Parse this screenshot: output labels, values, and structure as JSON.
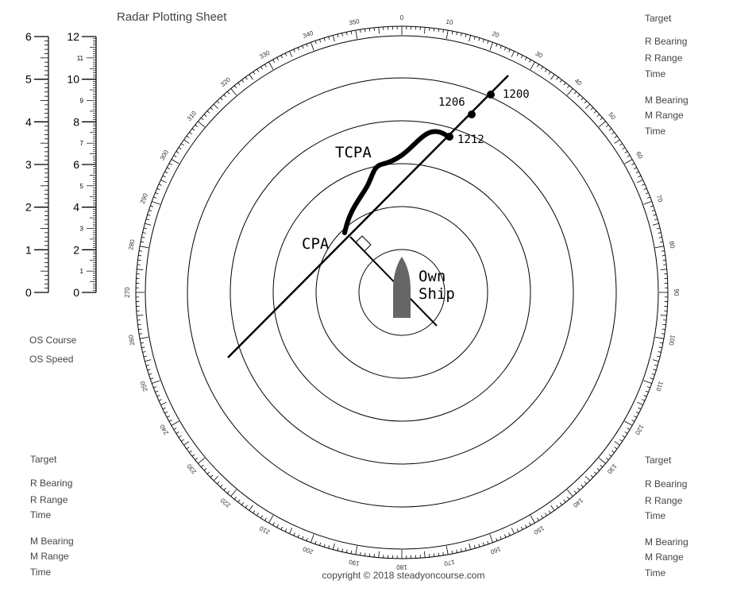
{
  "sheet": {
    "title": "Radar Plotting Sheet",
    "copyright": "copyright © 2018 steadyoncourse.com"
  },
  "plot": {
    "bearing_labels": [
      "0",
      "10",
      "20",
      "30",
      "40",
      "50",
      "60",
      "70",
      "80",
      "90",
      "100",
      "110",
      "120",
      "130",
      "140",
      "150",
      "160",
      "170",
      "180",
      "190",
      "200",
      "210",
      "220",
      "230",
      "240",
      "250",
      "260",
      "270",
      "280",
      "290",
      "300",
      "310",
      "320",
      "330",
      "340",
      "350"
    ],
    "range_rings": 5,
    "own_ship_label_line1": "Own",
    "own_ship_label_line2": "Ship",
    "annotations": {
      "cpa": "CPA",
      "tcpa": "TCPA"
    },
    "target_times": [
      "1200",
      "1206",
      "1212"
    ]
  },
  "scales": {
    "left_scale_labels": [
      "0",
      "1",
      "2",
      "3",
      "4",
      "5",
      "6"
    ],
    "right_scale_major_labels": [
      "0",
      "2",
      "4",
      "6",
      "8",
      "10",
      "12"
    ],
    "right_scale_minor_labels": [
      "1",
      "3",
      "5",
      "7",
      "9",
      "11"
    ]
  },
  "panels": {
    "top_right": {
      "target": "Target",
      "r_bearing": "R Bearing",
      "r_range": "R Range",
      "time1": "Time",
      "m_bearing": "M Bearing",
      "m_range": "M Range",
      "time2": "Time"
    },
    "os_info": {
      "course": "OS Course",
      "speed": "OS Speed"
    },
    "bottom_left": {
      "target": "Target",
      "r_bearing": "R Bearing",
      "r_range": "R Range",
      "time1": "Time",
      "m_bearing": "M Bearing",
      "m_range": "M Range",
      "time2": "Time"
    },
    "bottom_right": {
      "target": "Target",
      "r_bearing": "R Bearing",
      "r_range": "R Range",
      "time1": "Time",
      "m_bearing": "M Bearing",
      "m_range": "M Range",
      "time2": "Time"
    }
  },
  "colors": {
    "ink": "#000000",
    "text": "#444444",
    "own_ship": "#666666"
  }
}
